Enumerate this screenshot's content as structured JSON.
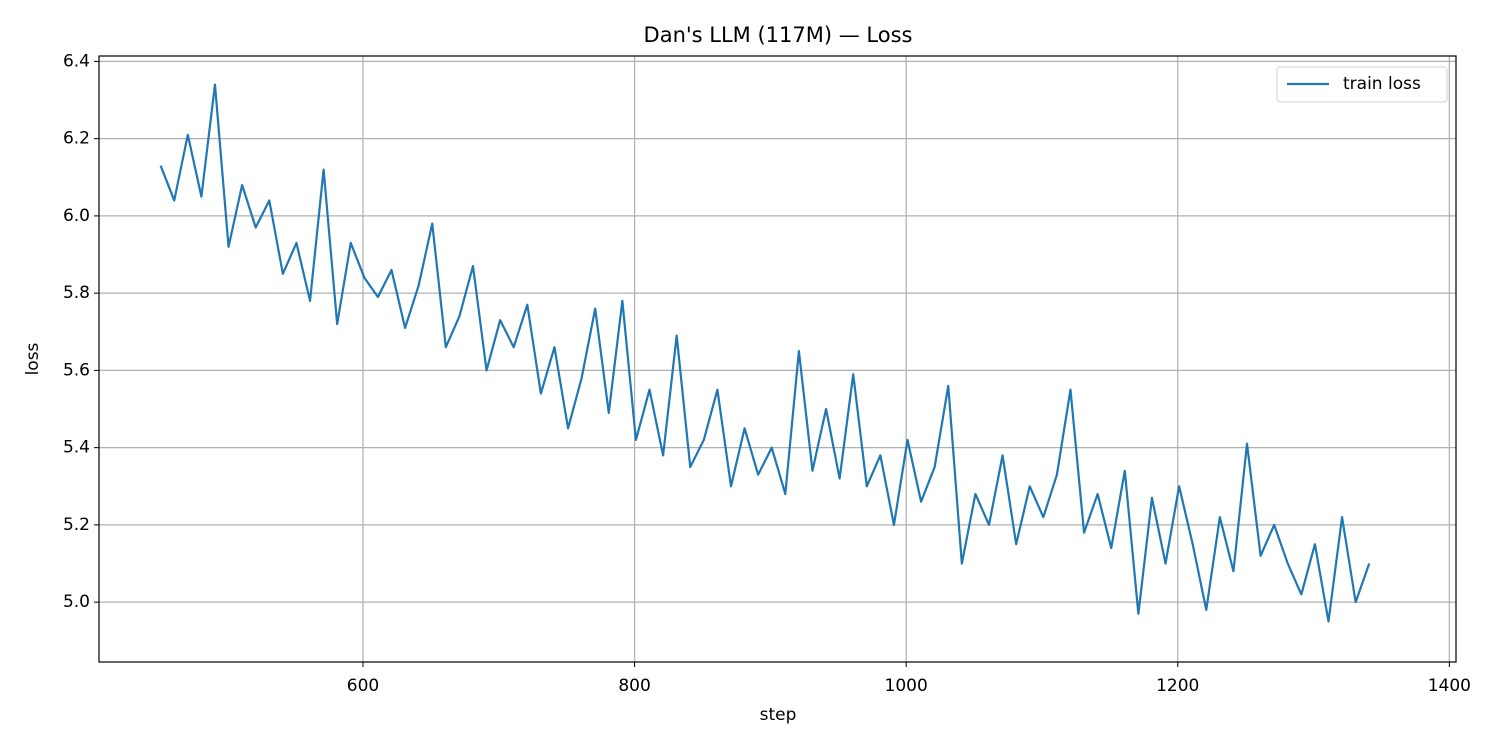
{
  "chart_data": {
    "type": "line",
    "title": "Dan's LLM (117M) — Loss",
    "xlabel": "step",
    "ylabel": "loss",
    "x": [
      451,
      461,
      471,
      481,
      491,
      501,
      511,
      521,
      531,
      541,
      551,
      561,
      571,
      581,
      591,
      601,
      611,
      621,
      631,
      641,
      651,
      661,
      671,
      681,
      691,
      701,
      711,
      721,
      731,
      741,
      751,
      761,
      771,
      781,
      791,
      801,
      811,
      821,
      831,
      841,
      851,
      861,
      871,
      881,
      891,
      901,
      911,
      921,
      931,
      941,
      951,
      961,
      971,
      981,
      991,
      1001,
      1011,
      1021,
      1031,
      1041,
      1051,
      1061,
      1071,
      1081,
      1091,
      1101,
      1111,
      1121,
      1131,
      1141,
      1151,
      1161,
      1171,
      1181,
      1191,
      1201,
      1211,
      1221,
      1231,
      1241,
      1251,
      1261,
      1271,
      1281,
      1291,
      1301,
      1311,
      1321,
      1331,
      1341
    ],
    "series": [
      {
        "name": "train loss",
        "color": "#1f77b4",
        "values": [
          6.13,
          6.04,
          6.21,
          6.05,
          6.34,
          5.92,
          6.08,
          5.97,
          6.04,
          5.85,
          5.93,
          5.78,
          6.12,
          5.72,
          5.93,
          5.84,
          5.79,
          5.86,
          5.71,
          5.82,
          5.98,
          5.66,
          5.74,
          5.87,
          5.6,
          5.73,
          5.66,
          5.77,
          5.54,
          5.66,
          5.45,
          5.58,
          5.76,
          5.49,
          5.78,
          5.42,
          5.55,
          5.38,
          5.69,
          5.35,
          5.42,
          5.55,
          5.3,
          5.45,
          5.33,
          5.4,
          5.28,
          5.65,
          5.34,
          5.5,
          5.32,
          5.59,
          5.3,
          5.38,
          5.2,
          5.42,
          5.26,
          5.35,
          5.56,
          5.1,
          5.28,
          5.2,
          5.38,
          5.15,
          5.3,
          5.22,
          5.33,
          5.55,
          5.18,
          5.28,
          5.14,
          5.34,
          4.97,
          5.27,
          5.1,
          5.3,
          5.15,
          4.98,
          5.22,
          5.08,
          5.41,
          5.12,
          5.2,
          5.1,
          5.02,
          5.15,
          4.95,
          5.22,
          5.0,
          5.1
        ]
      }
    ],
    "xlim": [
      405.6,
      1404.9
    ],
    "xticks": [
      600,
      800,
      1000,
      1200,
      1400
    ],
    "ylim": [
      4.845,
      6.414
    ],
    "yticks": [
      {
        "value": 5.0,
        "label": "5.0"
      },
      5.2,
      5.4,
      5.6,
      5.8,
      {
        "value": 6.0,
        "label": "6.0"
      },
      6.2,
      6.4
    ],
    "grid": true,
    "legend": "upper right"
  }
}
